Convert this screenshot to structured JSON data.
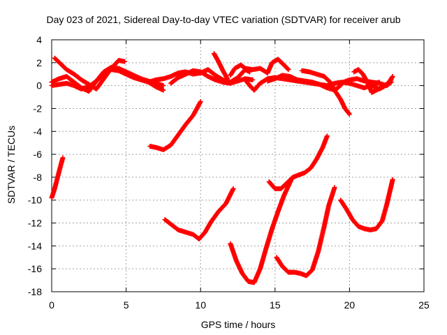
{
  "chart_data": {
    "type": "scatter",
    "title": "Day 023 of 2021, Sidereal Day-to-day VTEC variation (SDTVAR) for receiver arub",
    "xlabel": "GPS time / hours",
    "ylabel": "SDTVAR / TECUs",
    "xlim": [
      0,
      25
    ],
    "ylim": [
      -18,
      4
    ],
    "xticks": [
      0,
      5,
      10,
      15,
      20,
      25
    ],
    "yticks": [
      -18,
      -16,
      -14,
      -12,
      -10,
      -8,
      -6,
      -4,
      -2,
      0,
      2,
      4
    ],
    "grid": true,
    "marker": "plus",
    "color": "#ff0000",
    "series": [
      {
        "points": [
          [
            0.0,
            -9.8
          ],
          [
            0.2,
            -9.0
          ],
          [
            0.4,
            -8.0
          ],
          [
            0.6,
            -7.0
          ],
          [
            0.75,
            -6.3
          ]
        ]
      },
      {
        "points": [
          [
            0.2,
            2.4
          ],
          [
            0.6,
            1.9
          ],
          [
            1.0,
            1.4
          ],
          [
            1.5,
            1.0
          ],
          [
            2.0,
            0.5
          ],
          [
            2.5,
            0.1
          ],
          [
            3.0,
            -0.3
          ],
          [
            3.5,
            0.6
          ],
          [
            4.0,
            1.5
          ],
          [
            4.5,
            2.2
          ],
          [
            4.9,
            2.1
          ]
        ]
      },
      {
        "points": [
          [
            0.0,
            0.3
          ],
          [
            0.5,
            0.6
          ],
          [
            1.0,
            0.8
          ],
          [
            1.5,
            0.3
          ],
          [
            2.0,
            -0.2
          ],
          [
            2.5,
            -0.5
          ],
          [
            3.0,
            0.4
          ],
          [
            3.5,
            1.2
          ],
          [
            4.0,
            1.6
          ],
          [
            4.5,
            1.5
          ],
          [
            5.0,
            1.2
          ],
          [
            5.5,
            0.9
          ],
          [
            6.0,
            0.6
          ],
          [
            6.5,
            0.4
          ],
          [
            7.0,
            0.2
          ],
          [
            7.5,
            0.0
          ]
        ]
      },
      {
        "points": [
          [
            0.0,
            0.0
          ],
          [
            0.5,
            0.1
          ],
          [
            1.0,
            0.2
          ],
          [
            1.5,
            0.0
          ],
          [
            2.0,
            -0.3
          ],
          [
            2.5,
            -0.1
          ],
          [
            3.0,
            0.4
          ],
          [
            3.5,
            1.0
          ],
          [
            4.0,
            1.4
          ],
          [
            4.5,
            1.3
          ],
          [
            5.0,
            1.0
          ],
          [
            5.5,
            0.7
          ],
          [
            6.0,
            0.5
          ],
          [
            6.5,
            0.3
          ],
          [
            7.0,
            -0.1
          ],
          [
            7.5,
            -0.4
          ]
        ]
      },
      {
        "points": [
          [
            6.5,
            0.3
          ],
          [
            7.0,
            0.5
          ],
          [
            7.5,
            0.6
          ],
          [
            8.0,
            0.8
          ],
          [
            8.5,
            1.1
          ],
          [
            9.0,
            1.2
          ],
          [
            9.5,
            1.0
          ],
          [
            10.0,
            1.1
          ],
          [
            10.5,
            1.4
          ],
          [
            11.0,
            0.9
          ],
          [
            11.5,
            0.5
          ],
          [
            12.0,
            0.3
          ],
          [
            12.5,
            0.7
          ],
          [
            13.0,
            1.4
          ],
          [
            13.3,
            1.2
          ]
        ]
      },
      {
        "points": [
          [
            8.0,
            0.2
          ],
          [
            8.5,
            0.7
          ],
          [
            9.0,
            1.0
          ],
          [
            9.5,
            1.3
          ],
          [
            10.0,
            1.2
          ],
          [
            10.5,
            0.8
          ],
          [
            11.0,
            0.5
          ],
          [
            11.5,
            0.3
          ],
          [
            12.0,
            0.2
          ],
          [
            12.5,
            0.4
          ],
          [
            13.0,
            0.6
          ],
          [
            13.5,
            0.5
          ]
        ]
      },
      {
        "points": [
          [
            10.9,
            2.8
          ],
          [
            11.2,
            2.1
          ],
          [
            11.5,
            1.3
          ],
          [
            11.8,
            0.6
          ]
        ]
      },
      {
        "points": [
          [
            12.0,
            0.9
          ],
          [
            12.3,
            1.5
          ],
          [
            12.7,
            1.8
          ],
          [
            13.0,
            1.5
          ],
          [
            13.5,
            1.4
          ],
          [
            14.0,
            1.5
          ],
          [
            14.5,
            1.1
          ]
        ]
      },
      {
        "points": [
          [
            13.0,
            0.5
          ],
          [
            13.3,
            0.0
          ],
          [
            13.6,
            -0.4
          ],
          [
            14.0,
            0.2
          ],
          [
            14.5,
            0.6
          ],
          [
            15.0,
            0.7
          ],
          [
            15.5,
            0.6
          ],
          [
            16.0,
            0.5
          ],
          [
            16.5,
            0.4
          ],
          [
            17.0,
            0.3
          ],
          [
            17.5,
            0.2
          ],
          [
            18.0,
            0.1
          ],
          [
            18.5,
            0.0
          ],
          [
            19.0,
            0.2
          ],
          [
            19.5,
            0.3
          ],
          [
            20.0,
            0.2
          ],
          [
            20.5,
            0.0
          ],
          [
            21.0,
            -0.2
          ],
          [
            21.5,
            0.1
          ],
          [
            22.0,
            0.3
          ]
        ]
      },
      {
        "points": [
          [
            14.5,
            1.1
          ],
          [
            14.8,
            2.0
          ],
          [
            15.2,
            2.3
          ],
          [
            15.6,
            1.8
          ],
          [
            15.9,
            1.4
          ]
        ]
      },
      {
        "points": [
          [
            14.5,
            0.4
          ],
          [
            15.0,
            0.6
          ],
          [
            15.5,
            0.9
          ],
          [
            16.0,
            0.8
          ],
          [
            16.5,
            0.5
          ],
          [
            17.0,
            0.4
          ],
          [
            17.5,
            0.3
          ],
          [
            18.0,
            0.1
          ],
          [
            18.5,
            -0.2
          ],
          [
            19.0,
            -0.4
          ],
          [
            19.3,
            -0.1
          ],
          [
            19.6,
            0.3
          ],
          [
            20.0,
            0.5
          ],
          [
            20.5,
            0.6
          ],
          [
            21.0,
            0.4
          ],
          [
            21.5,
            0.3
          ],
          [
            22.0,
            0.2
          ],
          [
            22.5,
            0.0
          ],
          [
            22.8,
            0.3
          ]
        ]
      },
      {
        "points": [
          [
            16.8,
            1.3
          ],
          [
            17.3,
            1.2
          ],
          [
            17.8,
            1.0
          ],
          [
            18.3,
            0.8
          ],
          [
            18.7,
            0.3
          ],
          [
            19.0,
            -0.4
          ],
          [
            19.4,
            -1.2
          ],
          [
            19.7,
            -2.0
          ],
          [
            20.0,
            -2.5
          ]
        ]
      },
      {
        "points": [
          [
            20.3,
            1.2
          ],
          [
            20.6,
            1.4
          ],
          [
            20.9,
            1.0
          ],
          [
            21.2,
            0.3
          ],
          [
            21.5,
            -0.6
          ],
          [
            21.8,
            -0.4
          ],
          [
            22.2,
            -0.1
          ],
          [
            22.6,
            0.2
          ],
          [
            22.8,
            0.5
          ]
        ]
      },
      {
        "points": [
          [
            21.5,
            0.0
          ],
          [
            22.0,
            -0.3
          ],
          [
            22.3,
            -0.1
          ],
          [
            22.6,
            0.2
          ],
          [
            22.9,
            0.8
          ]
        ]
      },
      {
        "points": [
          [
            6.6,
            -5.3
          ],
          [
            7.0,
            -5.4
          ],
          [
            7.5,
            -5.6
          ],
          [
            8.0,
            -5.2
          ],
          [
            8.5,
            -4.3
          ],
          [
            9.0,
            -3.4
          ],
          [
            9.5,
            -2.6
          ],
          [
            10.0,
            -1.4
          ]
        ]
      },
      {
        "points": [
          [
            7.6,
            -11.7
          ],
          [
            8.0,
            -12.1
          ],
          [
            8.5,
            -12.6
          ],
          [
            9.0,
            -12.8
          ],
          [
            9.5,
            -13.0
          ],
          [
            9.9,
            -13.4
          ],
          [
            10.3,
            -12.8
          ],
          [
            10.7,
            -11.9
          ],
          [
            11.2,
            -11.0
          ],
          [
            11.7,
            -10.3
          ],
          [
            12.2,
            -9.0
          ]
        ]
      },
      {
        "points": [
          [
            12.0,
            -13.8
          ],
          [
            12.4,
            -15.3
          ],
          [
            12.8,
            -16.4
          ],
          [
            13.2,
            -17.1
          ],
          [
            13.6,
            -17.2
          ],
          [
            14.0,
            -16.0
          ],
          [
            14.4,
            -14.2
          ],
          [
            14.8,
            -12.5
          ],
          [
            15.2,
            -11.0
          ],
          [
            15.6,
            -9.6
          ],
          [
            16.1,
            -8.2
          ]
        ]
      },
      {
        "points": [
          [
            14.6,
            -8.4
          ],
          [
            15.0,
            -9.0
          ],
          [
            15.4,
            -9.0
          ],
          [
            15.8,
            -8.5
          ],
          [
            16.2,
            -8.0
          ],
          [
            16.6,
            -7.8
          ],
          [
            17.0,
            -7.6
          ],
          [
            17.4,
            -7.2
          ],
          [
            17.8,
            -6.4
          ],
          [
            18.2,
            -5.4
          ],
          [
            18.5,
            -4.4
          ]
        ]
      },
      {
        "points": [
          [
            15.1,
            -15.0
          ],
          [
            15.5,
            -15.8
          ],
          [
            15.9,
            -16.3
          ],
          [
            16.3,
            -16.3
          ],
          [
            16.7,
            -16.4
          ],
          [
            17.1,
            -16.6
          ],
          [
            17.5,
            -16.1
          ],
          [
            17.9,
            -14.5
          ],
          [
            18.3,
            -12.3
          ],
          [
            18.6,
            -10.5
          ],
          [
            19.0,
            -8.9
          ]
        ]
      },
      {
        "points": [
          [
            19.4,
            -10.0
          ],
          [
            19.8,
            -10.8
          ],
          [
            20.2,
            -11.7
          ],
          [
            20.6,
            -12.3
          ],
          [
            21.0,
            -12.5
          ],
          [
            21.4,
            -12.6
          ],
          [
            21.8,
            -12.5
          ],
          [
            22.2,
            -11.8
          ],
          [
            22.5,
            -10.4
          ],
          [
            22.9,
            -8.2
          ]
        ]
      }
    ]
  }
}
